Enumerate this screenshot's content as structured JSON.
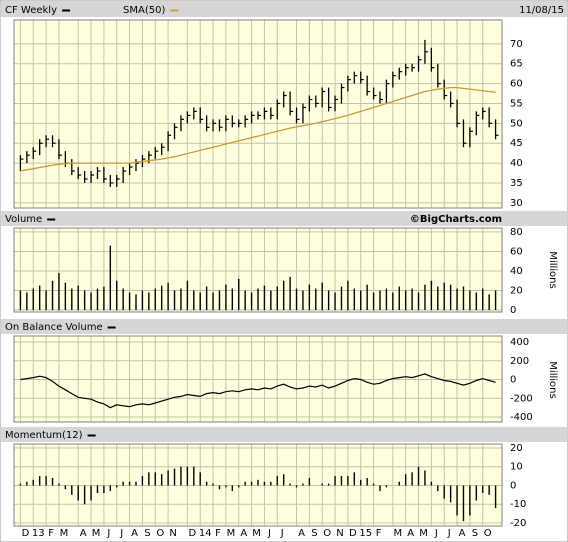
{
  "chart_data": [
    {
      "type": "ohlc",
      "title": "CF Weekly",
      "date": "11/08/15",
      "color": "#000000",
      "grid": true,
      "close": [
        41,
        42,
        43,
        45,
        46,
        45,
        42,
        40,
        38,
        37,
        36,
        37,
        38,
        36,
        35,
        36,
        38,
        39,
        40,
        41,
        42,
        43,
        44,
        47,
        49,
        51,
        52,
        53,
        51,
        49,
        50,
        49,
        51,
        50,
        50,
        51,
        52,
        52,
        53,
        52,
        55,
        57,
        53,
        51,
        54,
        56,
        55,
        58,
        54,
        56,
        59,
        61,
        62,
        61,
        58,
        57,
        56,
        60,
        62,
        63,
        64,
        64,
        66,
        68,
        64,
        60,
        57,
        55,
        50,
        45,
        48,
        52,
        53,
        50,
        47
      ],
      "high": [
        42,
        43,
        44,
        46,
        47,
        47,
        46,
        43,
        41,
        39,
        38,
        38,
        39,
        39,
        37,
        37,
        39,
        40,
        41,
        42,
        43,
        44,
        45,
        48,
        50,
        52,
        53,
        54,
        54,
        52,
        51,
        51,
        52,
        52,
        51,
        52,
        53,
        53,
        54,
        54,
        56,
        58,
        58,
        54,
        55,
        57,
        57,
        59,
        59,
        57,
        60,
        62,
        63,
        63,
        62,
        59,
        58,
        61,
        63,
        64,
        65,
        65,
        67,
        71,
        69,
        65,
        61,
        58,
        56,
        51,
        49,
        53,
        54,
        54,
        51
      ],
      "low": [
        38,
        40,
        41,
        42,
        44,
        44,
        41,
        39,
        37,
        36,
        35,
        35,
        36,
        35,
        34,
        34,
        35,
        37,
        38,
        39,
        40,
        41,
        42,
        43,
        46,
        48,
        50,
        51,
        50,
        48,
        48,
        48,
        48,
        49,
        49,
        49,
        50,
        51,
        51,
        51,
        51,
        54,
        52,
        50,
        50,
        53,
        54,
        54,
        53,
        53,
        55,
        58,
        60,
        60,
        57,
        56,
        55,
        55,
        59,
        61,
        62,
        63,
        63,
        65,
        63,
        59,
        56,
        54,
        49,
        44,
        44,
        47,
        51,
        49,
        46
      ],
      "series": [
        {
          "name": "SMA(50)",
          "color": "#cc9933",
          "values": [
            38,
            38.3,
            38.6,
            38.9,
            39.2,
            39.5,
            39.7,
            39.9,
            40,
            40,
            40,
            40,
            40,
            40,
            40,
            40,
            40,
            40,
            40.2,
            40.4,
            40.6,
            40.8,
            41,
            41.3,
            41.6,
            42,
            42.4,
            42.8,
            43.2,
            43.6,
            44,
            44.4,
            44.8,
            45.2,
            45.6,
            46,
            46.4,
            46.8,
            47.2,
            47.6,
            48,
            48.4,
            48.8,
            49.1,
            49.4,
            49.7,
            50,
            50.4,
            50.8,
            51.2,
            51.6,
            52,
            52.5,
            53,
            53.5,
            54,
            54.5,
            55,
            55.5,
            56,
            56.5,
            57,
            57.5,
            58,
            58.3,
            58.6,
            58.8,
            59,
            59,
            58.8,
            58.6,
            58.4,
            58.2,
            58,
            57.8
          ]
        }
      ],
      "ylim": [
        28.7,
        76
      ],
      "yticks": [
        30,
        35,
        40,
        45,
        50,
        55,
        60,
        65,
        70
      ]
    },
    {
      "type": "bar",
      "title": "Volume",
      "credit": "©BigCharts.com",
      "ylabel": "Millions",
      "color": "#000000",
      "grid": true,
      "values": [
        20,
        18,
        22,
        25,
        20,
        30,
        38,
        28,
        22,
        25,
        20,
        18,
        22,
        24,
        66,
        30,
        22,
        18,
        16,
        20,
        18,
        22,
        25,
        28,
        20,
        22,
        30,
        20,
        18,
        24,
        18,
        20,
        26,
        22,
        32,
        20,
        18,
        22,
        25,
        20,
        24,
        30,
        34,
        22,
        20,
        26,
        22,
        28,
        20,
        18,
        24,
        30,
        22,
        20,
        26,
        18,
        20,
        22,
        18,
        24,
        20,
        22,
        18,
        26,
        30,
        24,
        28,
        26,
        22,
        24,
        20,
        18,
        22,
        16,
        20
      ],
      "ylim": [
        -2,
        84
      ],
      "yticks": [
        0,
        20,
        40,
        60,
        80
      ]
    },
    {
      "type": "line",
      "title": "On Balance Volume",
      "ylabel": "Millions",
      "color": "#000000",
      "grid": true,
      "values": [
        0,
        10,
        20,
        35,
        20,
        -20,
        -70,
        -110,
        -150,
        -190,
        -200,
        -210,
        -240,
        -260,
        -300,
        -270,
        -280,
        -290,
        -270,
        -260,
        -270,
        -250,
        -230,
        -210,
        -190,
        -180,
        -160,
        -170,
        -180,
        -150,
        -140,
        -150,
        -130,
        -120,
        -130,
        -110,
        -100,
        -110,
        -90,
        -100,
        -70,
        -50,
        -80,
        -100,
        -90,
        -70,
        -80,
        -60,
        -90,
        -70,
        -40,
        -10,
        10,
        0,
        -30,
        -50,
        -40,
        -10,
        10,
        20,
        30,
        20,
        40,
        60,
        30,
        10,
        -10,
        -20,
        -40,
        -60,
        -40,
        -10,
        10,
        -10,
        -30
      ],
      "ylim": [
        -453,
        464
      ],
      "yticks": [
        -400,
        -200,
        0,
        200,
        400
      ]
    },
    {
      "type": "bar",
      "title": "Momentum(12)",
      "color": "#000000",
      "grid": true,
      "values": [
        1,
        2,
        3,
        5,
        5,
        4,
        1,
        -2,
        -5,
        -8,
        -10,
        -8,
        -4,
        -4,
        -3,
        -1,
        2,
        2,
        2,
        5,
        7,
        7,
        6,
        8,
        9,
        10,
        10,
        10,
        7,
        2,
        1,
        -2,
        -1,
        -3,
        -1,
        2,
        2,
        3,
        2,
        2,
        5,
        6,
        1,
        -1,
        1,
        4,
        0,
        1,
        1,
        5,
        5,
        5,
        7,
        3,
        4,
        1,
        -3,
        -1,
        0,
        2,
        6,
        7,
        10,
        8,
        2,
        -3,
        -7,
        -9,
        -16,
        -19,
        -16,
        -8,
        -4,
        -5,
        -12
      ],
      "ylim": [
        -21.6,
        22.1
      ],
      "yticks": [
        -20,
        -10,
        0,
        10,
        20
      ],
      "xlim": [
        -1,
        75
      ],
      "xticks": [
        {
          "value": 0,
          "label": "D"
        },
        {
          "value": 2,
          "label": "13"
        },
        {
          "value": 4,
          "label": "F"
        },
        {
          "value": 6,
          "label": "M"
        },
        {
          "value": 9,
          "label": "A"
        },
        {
          "value": 11,
          "label": "M"
        },
        {
          "value": 13,
          "label": "J"
        },
        {
          "value": 15,
          "label": "J"
        },
        {
          "value": 17,
          "label": "A"
        },
        {
          "value": 19,
          "label": "S"
        },
        {
          "value": 21,
          "label": "O"
        },
        {
          "value": 23,
          "label": "N"
        },
        {
          "value": 26,
          "label": "D"
        },
        {
          "value": 28,
          "label": "14"
        },
        {
          "value": 30,
          "label": "F"
        },
        {
          "value": 32,
          "label": "M"
        },
        {
          "value": 34,
          "label": "A"
        },
        {
          "value": 36,
          "label": "M"
        },
        {
          "value": 38,
          "label": "J"
        },
        {
          "value": 40,
          "label": "J"
        },
        {
          "value": 43,
          "label": "A"
        },
        {
          "value": 45,
          "label": "S"
        },
        {
          "value": 47,
          "label": "O"
        },
        {
          "value": 49,
          "label": "N"
        },
        {
          "value": 51,
          "label": "D"
        },
        {
          "value": 53,
          "label": "15"
        },
        {
          "value": 55,
          "label": "F"
        },
        {
          "value": 58,
          "label": "M"
        },
        {
          "value": 60,
          "label": "A"
        },
        {
          "value": 62,
          "label": "M"
        },
        {
          "value": 64,
          "label": "J"
        },
        {
          "value": 66,
          "label": "J"
        },
        {
          "value": 68,
          "label": "A"
        },
        {
          "value": 70,
          "label": "S"
        },
        {
          "value": 72,
          "label": "O"
        }
      ]
    }
  ]
}
